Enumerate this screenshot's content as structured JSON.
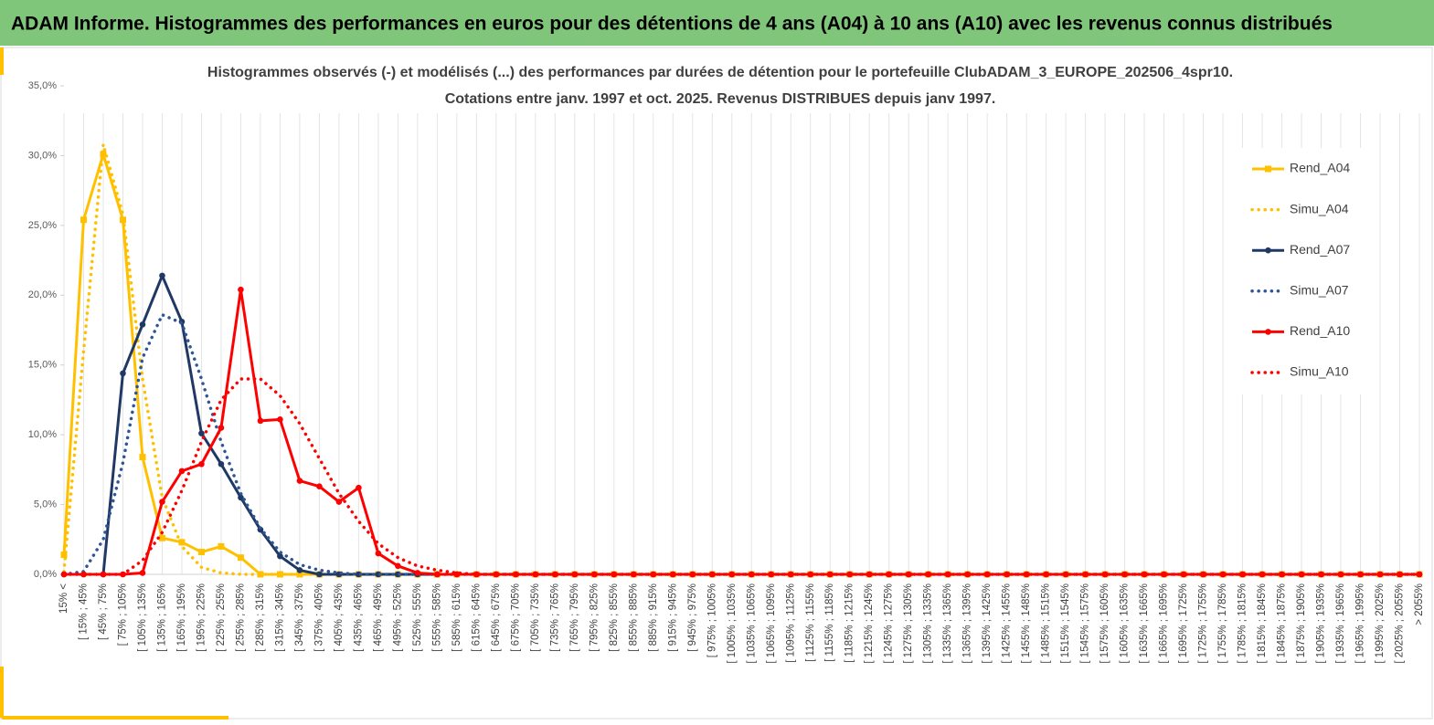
{
  "header": {
    "title": "ADAM Informe. Histogrammes des performances en euros pour des détentions de 4 ans (A04) à 10 ans (A10) avec les revenus connus distribués"
  },
  "chart_data": {
    "type": "line",
    "title": "Histogrammes observés (-) et modélisés (...) des performances par durées de détention pour le portefeuille ClubADAM_3_EUROPE_202506_4spr10.",
    "subtitle": "Cotations entre janv. 1997 et oct. 2025. Revenus DISTRIBUES depuis janv 1997.",
    "categories": [
      "15% <",
      "[ 15% ; 45%",
      "[ 45% ; 75%",
      "[ 75% ; 105%",
      "[ 105% ; 135%",
      "[ 135% ; 165%",
      "[ 165% ; 195%",
      "[ 195% ; 225%",
      "[ 225% ; 255%",
      "[ 255% ; 285%",
      "[ 285% ; 315%",
      "[ 315% ; 345%",
      "[ 345% ; 375%",
      "[ 375% ; 405%",
      "[ 405% ; 435%",
      "[ 435% ; 465%",
      "[ 465% ; 495%",
      "[ 495% ; 525%",
      "[ 525% ; 555%",
      "[ 555% ; 585%",
      "[ 585% ; 615%",
      "[ 615% ; 645%",
      "[ 645% ; 675%",
      "[ 675% ; 705%",
      "[ 705% ; 735%",
      "[ 735% ; 765%",
      "[ 765% ; 795%",
      "[ 795% ; 825%",
      "[ 825% ; 855%",
      "[ 855% ; 885%",
      "[ 885% ; 915%",
      "[ 915% ; 945%",
      "[ 945% ; 975%",
      "[ 975% ; 1005%",
      "[ 1005% ; 1035%",
      "[ 1035% ; 1065%",
      "[ 1065% ; 1095%",
      "[ 1095% ; 1125%",
      "[ 1125% ; 1155%",
      "[ 1155% ; 1185%",
      "[ 1185% ; 1215%",
      "[ 1215% ; 1245%",
      "[ 1245% ; 1275%",
      "[ 1275% ; 1305%",
      "[ 1305% ; 1335%",
      "[ 1335% ; 1365%",
      "[ 1365% ; 1395%",
      "[ 1395% ; 1425%",
      "[ 1425% ; 1455%",
      "[ 1455% ; 1485%",
      "[ 1485% ; 1515%",
      "[ 1515% ; 1545%",
      "[ 1545% ; 1575%",
      "[ 1575% ; 1605%",
      "[ 1605% ; 1635%",
      "[ 1635% ; 1665%",
      "[ 1665% ; 1695%",
      "[ 1695% ; 1725%",
      "[ 1725% ; 1755%",
      "[ 1755% ; 1785%",
      "[ 1785% ; 1815%",
      "[ 1815% ; 1845%",
      "[ 1845% ; 1875%",
      "[ 1875% ; 1905%",
      "[ 1905% ; 1935%",
      "[ 1935% ; 1965%",
      "[ 1965% ; 1995%",
      "[ 1995% ; 2025%",
      "[ 2025% ; 2055%",
      "> 2055%"
    ],
    "series": [
      {
        "name": "Rend_A04",
        "color": "#ffc000",
        "style": "solid",
        "marker": "square",
        "values": [
          1.4,
          25.4,
          30.1,
          25.4,
          8.4,
          2.6,
          2.3,
          1.6,
          2.0,
          1.2,
          0,
          0,
          0,
          0,
          0,
          0,
          0,
          0,
          0,
          0,
          0,
          0,
          0,
          0,
          0,
          0,
          0,
          0,
          0,
          0,
          0,
          0,
          0,
          0,
          0,
          0,
          0,
          0,
          0,
          0,
          0,
          0,
          0,
          0,
          0,
          0,
          0,
          0,
          0,
          0,
          0,
          0,
          0,
          0,
          0,
          0,
          0,
          0,
          0,
          0,
          0,
          0,
          0,
          0,
          0,
          0,
          0,
          0,
          0,
          0
        ]
      },
      {
        "name": "Simu_A04",
        "color": "#ffc000",
        "style": "dotted",
        "marker": "none",
        "values": [
          0.2,
          16,
          30.8,
          25.8,
          14,
          5.5,
          2.0,
          0.5,
          0.1,
          0,
          0,
          0,
          0,
          0,
          0,
          0,
          0,
          0,
          0,
          0,
          0,
          0,
          0,
          0,
          0,
          0,
          0,
          0,
          0,
          0,
          0,
          0,
          0,
          0,
          0,
          0,
          0,
          0,
          0,
          0,
          0,
          0,
          0,
          0,
          0,
          0,
          0,
          0,
          0,
          0,
          0,
          0,
          0,
          0,
          0,
          0,
          0,
          0,
          0,
          0,
          0,
          0,
          0,
          0,
          0,
          0,
          0,
          0,
          0,
          0
        ]
      },
      {
        "name": "Rend_A07",
        "color": "#1f3864",
        "style": "solid",
        "marker": "circle",
        "values": [
          0,
          0,
          0,
          14.4,
          17.9,
          21.4,
          18.1,
          10.1,
          7.9,
          5.5,
          3.2,
          1.3,
          0.3,
          0,
          0,
          0,
          0,
          0,
          0,
          0,
          0,
          0,
          0,
          0,
          0,
          0,
          0,
          0,
          0,
          0,
          0,
          0,
          0,
          0,
          0,
          0,
          0,
          0,
          0,
          0,
          0,
          0,
          0,
          0,
          0,
          0,
          0,
          0,
          0,
          0,
          0,
          0,
          0,
          0,
          0,
          0,
          0,
          0,
          0,
          0,
          0,
          0,
          0,
          0,
          0,
          0,
          0,
          0,
          0,
          0
        ]
      },
      {
        "name": "Simu_A07",
        "color": "#2e5597",
        "style": "dotted",
        "marker": "none",
        "values": [
          0,
          0.2,
          2.5,
          8,
          15.5,
          18.6,
          18,
          14,
          9.5,
          5.8,
          3.3,
          1.6,
          0.7,
          0.3,
          0.1,
          0,
          0,
          0,
          0,
          0,
          0,
          0,
          0,
          0,
          0,
          0,
          0,
          0,
          0,
          0,
          0,
          0,
          0,
          0,
          0,
          0,
          0,
          0,
          0,
          0,
          0,
          0,
          0,
          0,
          0,
          0,
          0,
          0,
          0,
          0,
          0,
          0,
          0,
          0,
          0,
          0,
          0,
          0,
          0,
          0,
          0,
          0,
          0,
          0,
          0,
          0,
          0,
          0,
          0,
          0
        ]
      },
      {
        "name": "Rend_A10",
        "color": "#ff0000",
        "style": "solid",
        "marker": "circle",
        "values": [
          0,
          0,
          0,
          0,
          0.1,
          5.2,
          7.4,
          7.9,
          10.5,
          20.4,
          11.0,
          11.1,
          6.7,
          6.3,
          5.2,
          6.2,
          1.5,
          0.6,
          0.1,
          0,
          0,
          0,
          0,
          0,
          0,
          0,
          0,
          0,
          0,
          0,
          0,
          0,
          0,
          0,
          0,
          0,
          0,
          0,
          0,
          0,
          0,
          0,
          0,
          0,
          0,
          0,
          0,
          0,
          0,
          0,
          0,
          0,
          0,
          0,
          0,
          0,
          0,
          0,
          0,
          0,
          0,
          0,
          0,
          0,
          0,
          0,
          0,
          0,
          0,
          0
        ]
      },
      {
        "name": "Simu_A10",
        "color": "#ff0000",
        "style": "dotted",
        "marker": "none",
        "values": [
          0,
          0,
          0,
          0,
          1.0,
          3,
          6,
          9.5,
          12.5,
          14.0,
          14.0,
          12.8,
          10.8,
          8.3,
          5.8,
          3.8,
          2.2,
          1.2,
          0.6,
          0.3,
          0.1,
          0,
          0,
          0,
          0,
          0,
          0,
          0,
          0,
          0,
          0,
          0,
          0,
          0,
          0,
          0,
          0,
          0,
          0,
          0,
          0,
          0,
          0,
          0,
          0,
          0,
          0,
          0,
          0,
          0,
          0,
          0,
          0,
          0,
          0,
          0,
          0,
          0,
          0,
          0,
          0,
          0,
          0,
          0,
          0,
          0,
          0,
          0,
          0,
          0
        ]
      }
    ],
    "ylim": [
      0,
      35
    ],
    "yticks": [
      {
        "value": 0,
        "label": "0,0%"
      },
      {
        "value": 5,
        "label": "5,0%"
      },
      {
        "value": 10,
        "label": "10,0%"
      },
      {
        "value": 15,
        "label": "15,0%"
      },
      {
        "value": 20,
        "label": "20,0%"
      },
      {
        "value": 25,
        "label": "25,0%"
      },
      {
        "value": 30,
        "label": "30,0%"
      },
      {
        "value": 35,
        "label": "35,0%"
      }
    ],
    "grid": "x",
    "legend": "right"
  }
}
